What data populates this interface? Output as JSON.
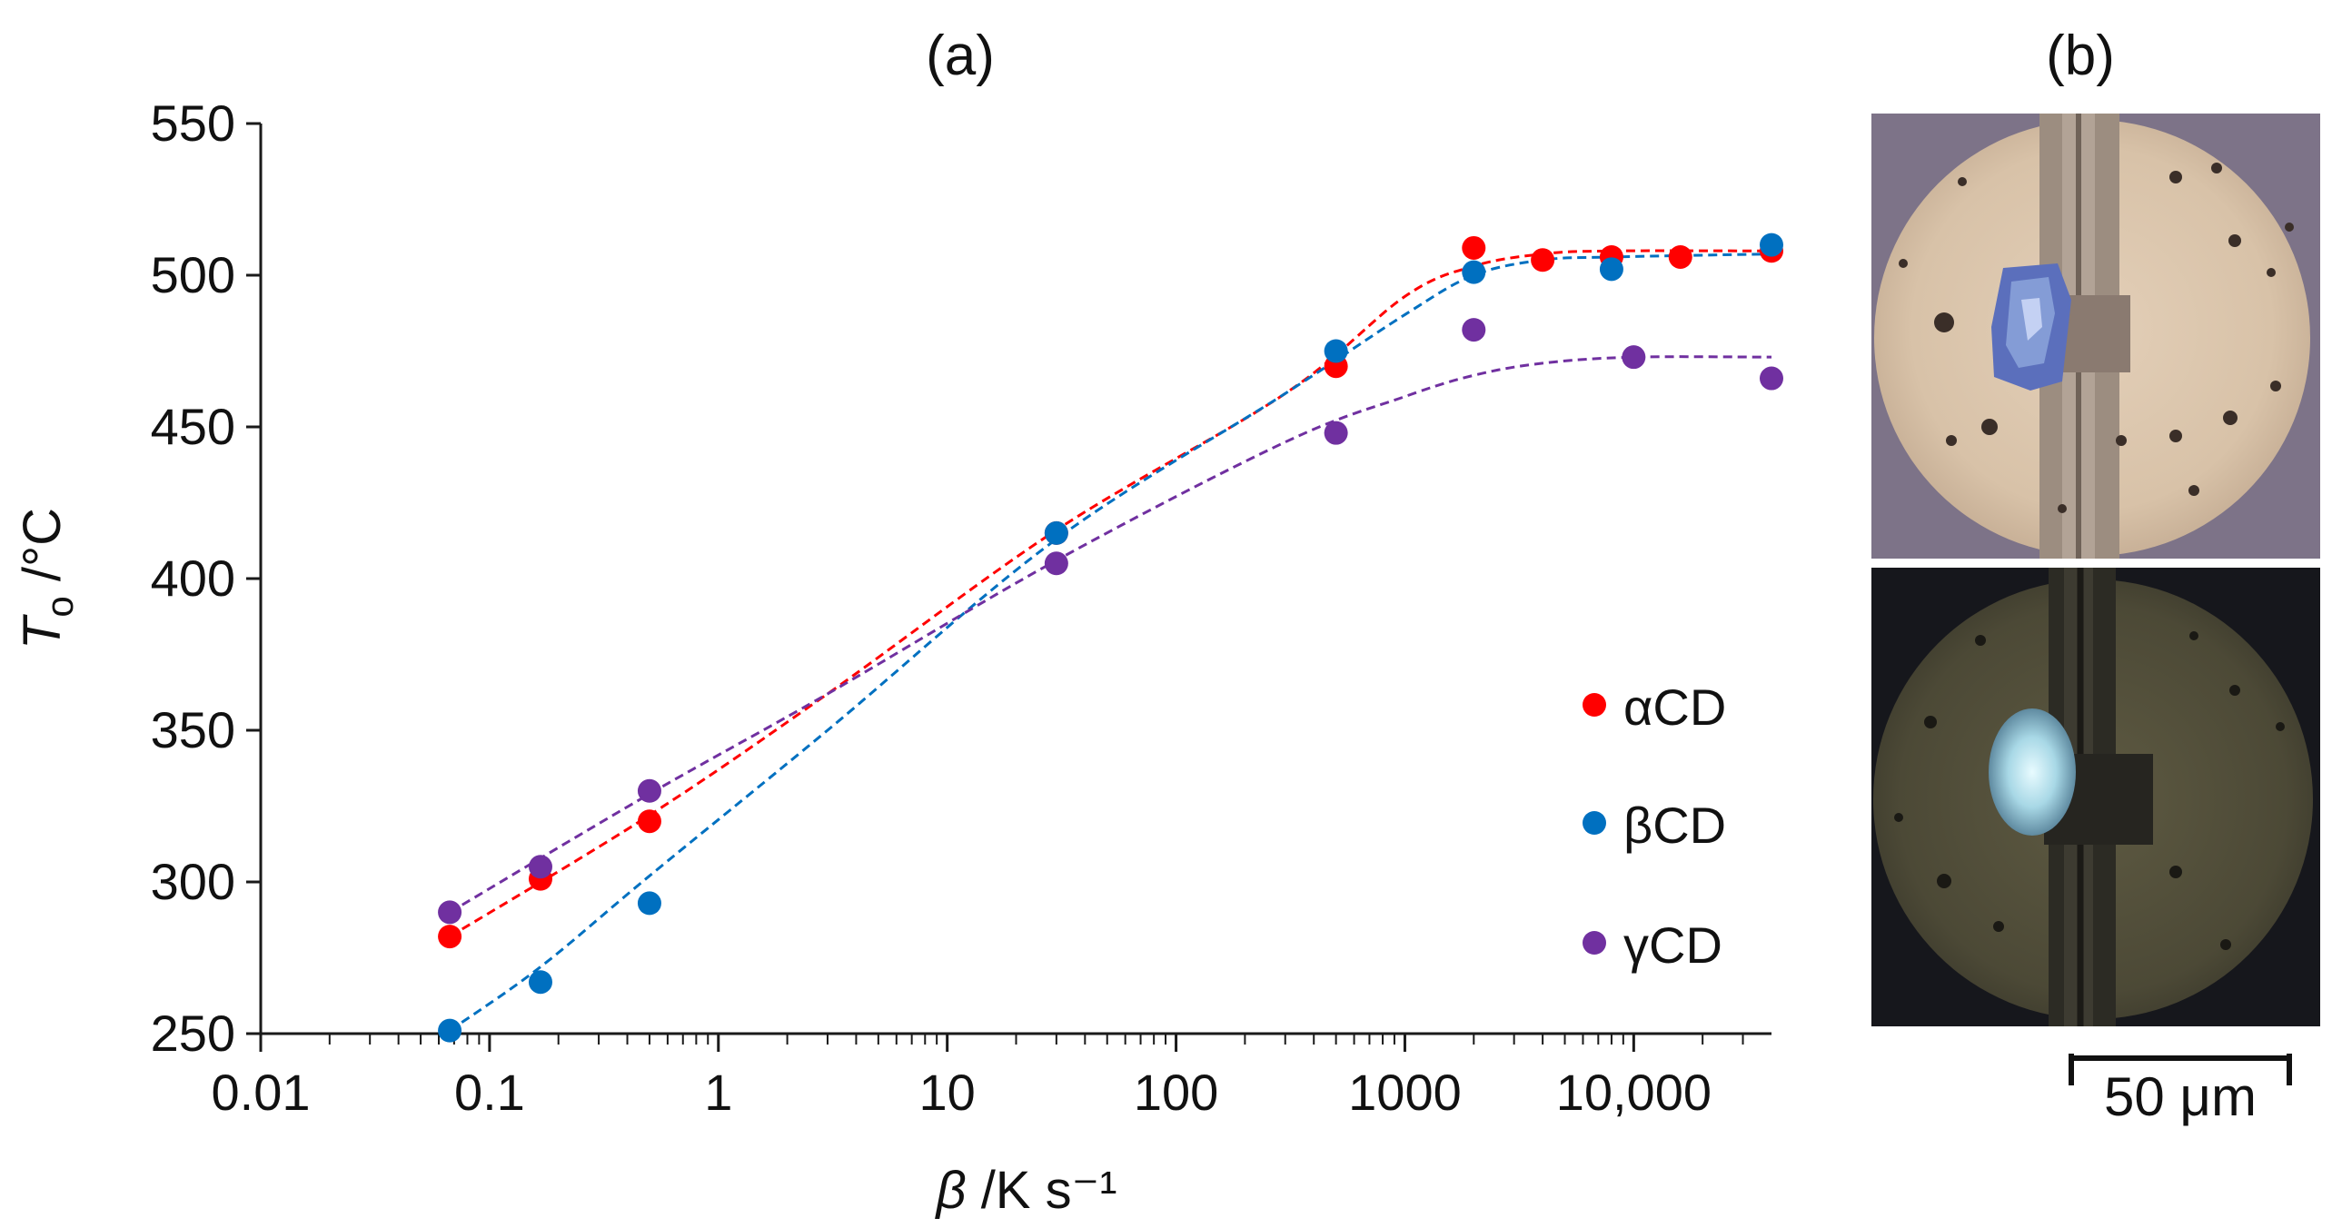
{
  "chart_data": {
    "type": "scatter",
    "panel_label": "(a)",
    "x_scale": "log",
    "xlabel_symbol": "β",
    "xlabel_unit": " /K s⁻¹",
    "ylabel_symbol": "T",
    "ylabel_subscript": "o",
    "ylabel_unit": " /°C",
    "xlim": [
      0.01,
      40000
    ],
    "ylim": [
      250,
      550
    ],
    "x_ticks": [
      0.01,
      0.1,
      1,
      10,
      100,
      1000,
      10000
    ],
    "x_tick_labels": [
      "0.01",
      "0.1",
      "1",
      "10",
      "100",
      "1000",
      "10,000"
    ],
    "y_ticks": [
      250,
      300,
      350,
      400,
      450,
      500,
      550
    ],
    "y_tick_labels": [
      "250",
      "300",
      "350",
      "400",
      "450",
      "500",
      "550"
    ],
    "legend_position": "right",
    "series": [
      {
        "name": "αCD",
        "color": "#ff0000",
        "points": [
          [
            0.067,
            282
          ],
          [
            0.167,
            301
          ],
          [
            0.5,
            320
          ],
          [
            30,
            415
          ],
          [
            500,
            470
          ],
          [
            2000,
            509
          ],
          [
            4000,
            505
          ],
          [
            8000,
            506
          ],
          [
            16000,
            506
          ],
          [
            40000,
            508
          ]
        ],
        "trend": [
          [
            0.067,
            282
          ],
          [
            0.5,
            322
          ],
          [
            3,
            362
          ],
          [
            30,
            416
          ],
          [
            300,
            461
          ],
          [
            1000,
            493
          ],
          [
            2000,
            503
          ],
          [
            4000,
            507
          ],
          [
            8000,
            508
          ],
          [
            40000,
            508
          ]
        ]
      },
      {
        "name": "βCD",
        "color": "#0070c0",
        "points": [
          [
            0.067,
            251
          ],
          [
            0.167,
            267
          ],
          [
            0.5,
            293
          ],
          [
            30,
            415
          ],
          [
            500,
            475
          ],
          [
            2000,
            501
          ],
          [
            8000,
            502
          ],
          [
            40000,
            510
          ]
        ],
        "trend": [
          [
            0.067,
            251
          ],
          [
            0.167,
            272
          ],
          [
            0.5,
            302
          ],
          [
            3,
            350
          ],
          [
            30,
            413
          ],
          [
            300,
            461
          ],
          [
            1000,
            487
          ],
          [
            2000,
            500
          ],
          [
            4000,
            505
          ],
          [
            8000,
            506
          ],
          [
            40000,
            507
          ]
        ]
      },
      {
        "name": "γCD",
        "color": "#7030a0",
        "points": [
          [
            0.067,
            290
          ],
          [
            0.167,
            305
          ],
          [
            0.5,
            330
          ],
          [
            30,
            405
          ],
          [
            500,
            448
          ],
          [
            2000,
            482
          ],
          [
            10000,
            473
          ],
          [
            40000,
            466
          ]
        ],
        "trend": [
          [
            0.067,
            290
          ],
          [
            0.5,
            329
          ],
          [
            3,
            362
          ],
          [
            30,
            406
          ],
          [
            300,
            445
          ],
          [
            1000,
            460
          ],
          [
            2000,
            467
          ],
          [
            4000,
            471
          ],
          [
            10000,
            473
          ],
          [
            40000,
            473
          ]
        ]
      }
    ]
  },
  "image_panel": {
    "panel_label": "(b)",
    "scale_bar_label": "50 μm"
  }
}
